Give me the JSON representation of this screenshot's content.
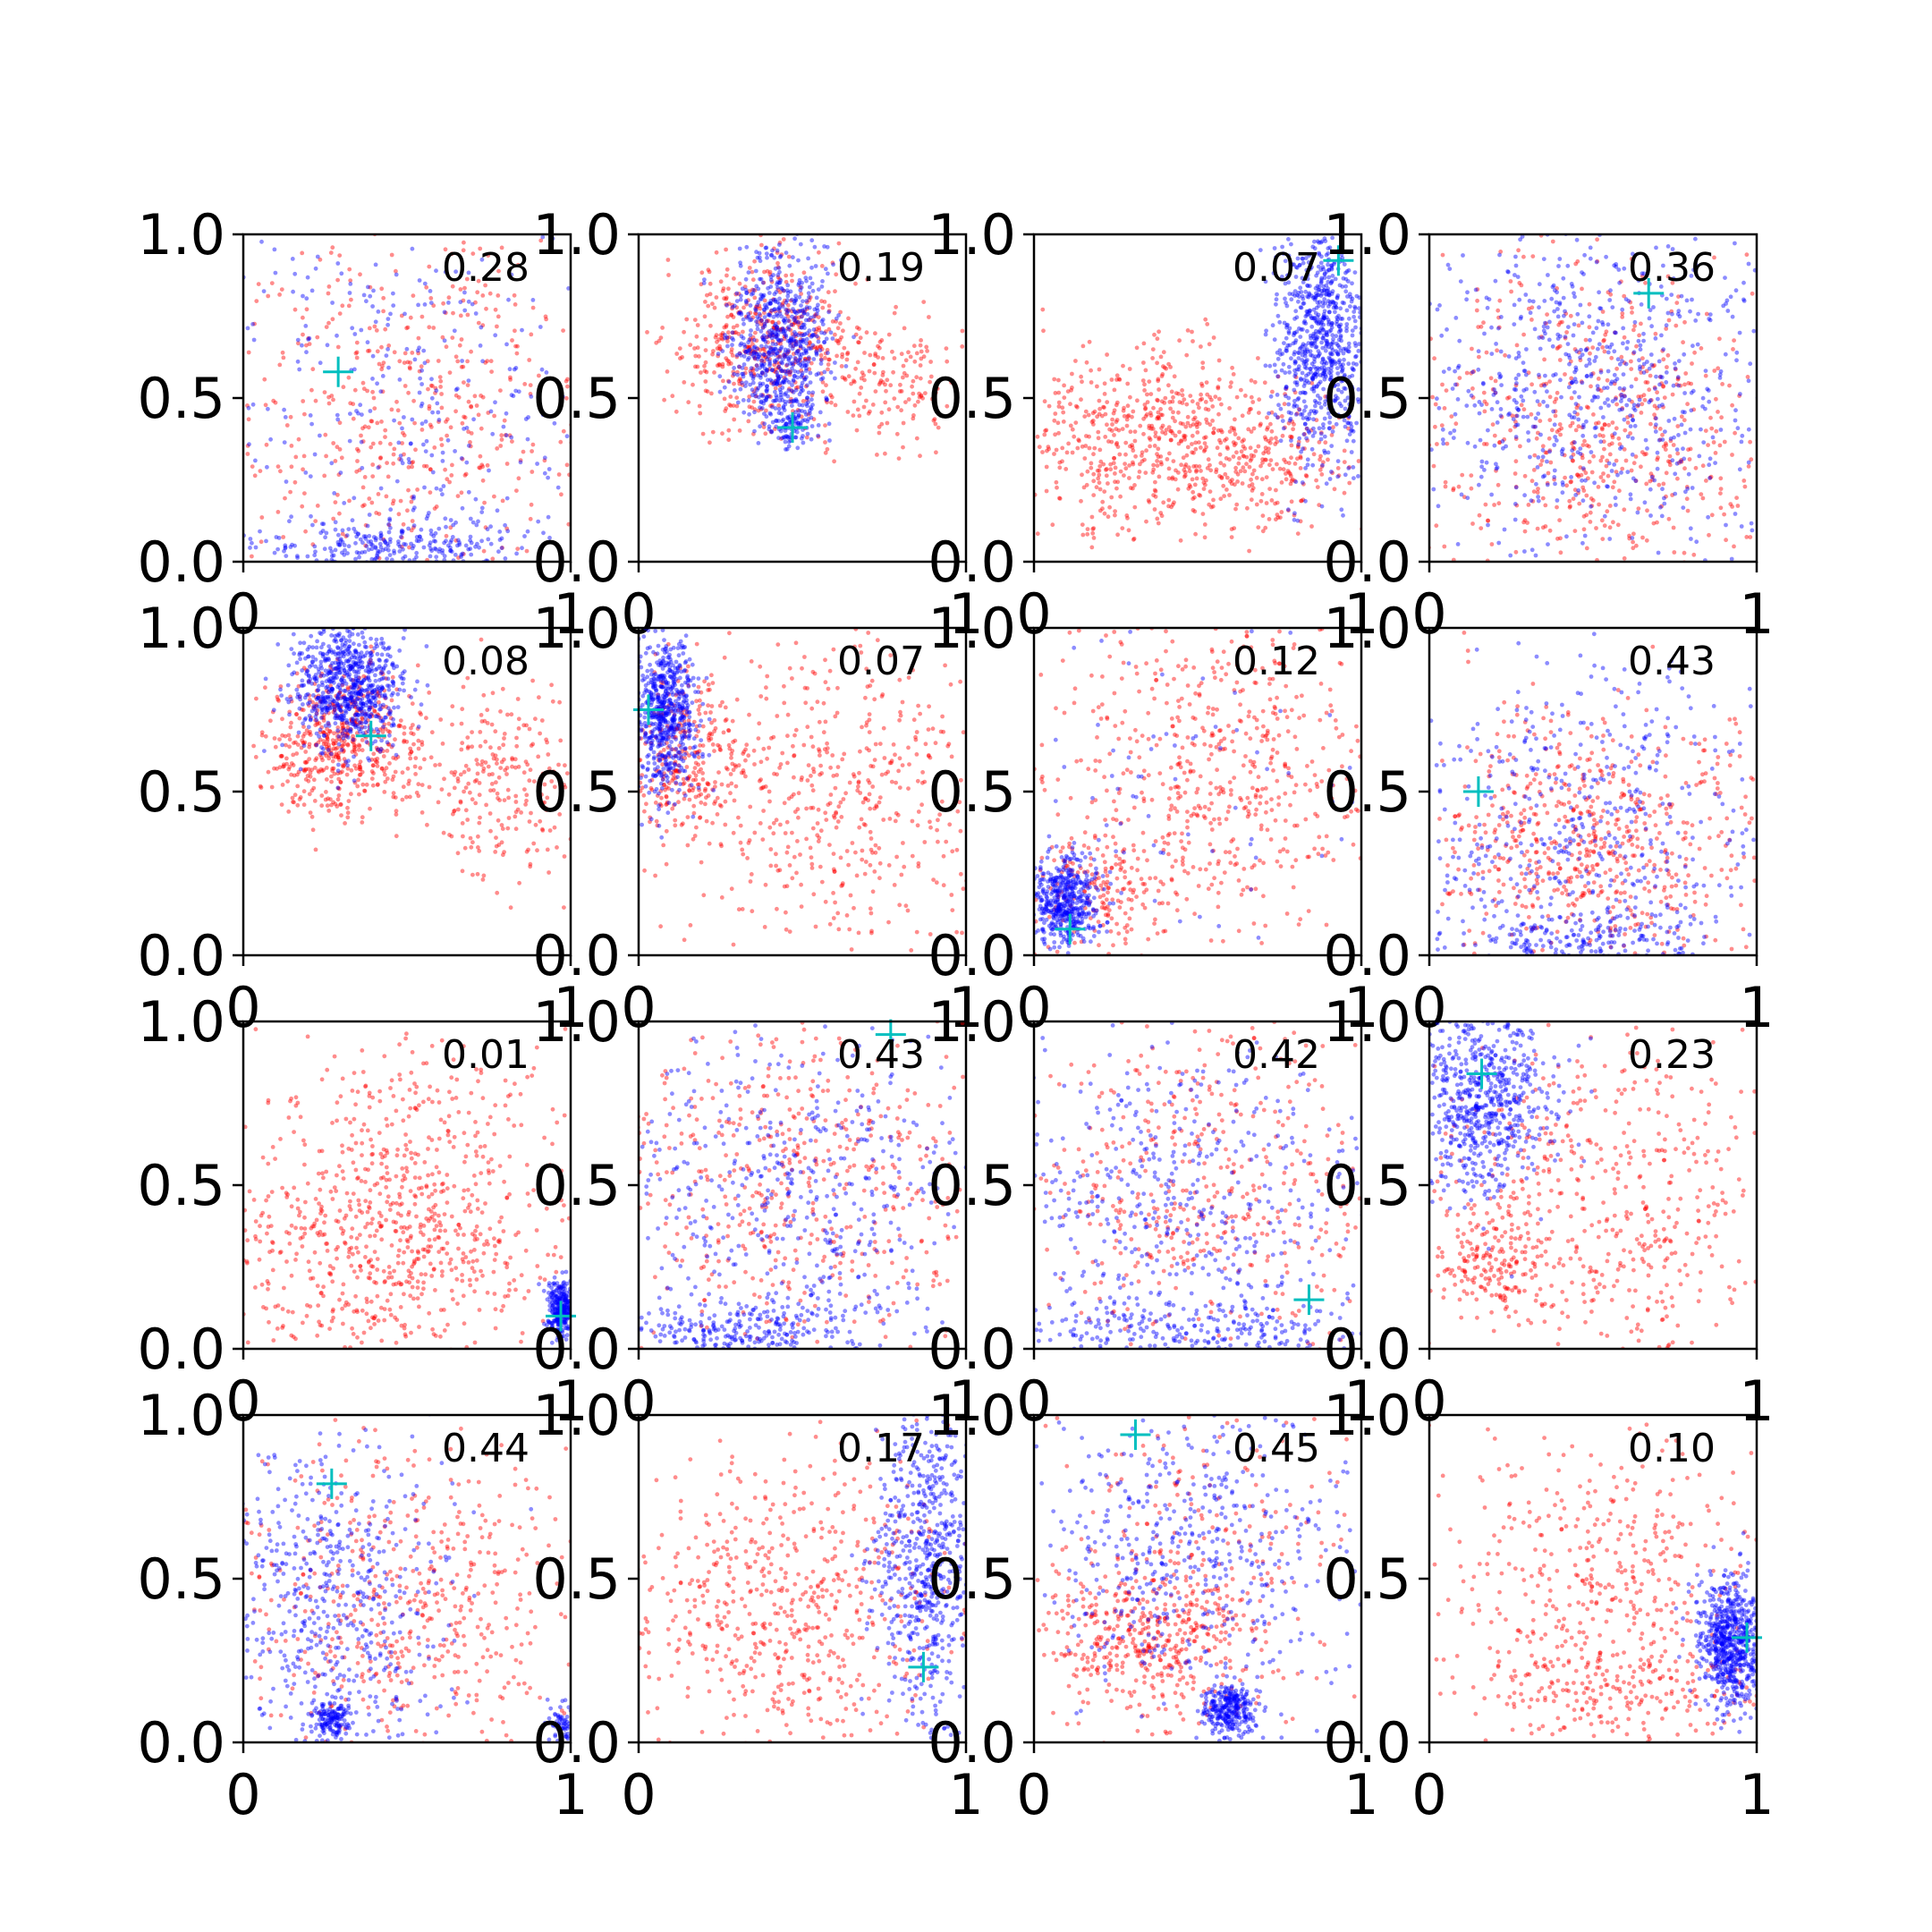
{
  "figure": {
    "layout": "4x4 grid of scatter subplots",
    "background": "#ffffff"
  },
  "colors": {
    "red_series": "#ff0000",
    "blue_series": "#0000ff",
    "marker_plus": "#00bfbf",
    "axis": "#000000"
  },
  "chart_data": [
    {
      "type": "scatter",
      "annotation": "0.28",
      "xlim": [
        0,
        1
      ],
      "ylim": [
        0,
        1
      ],
      "x_ticks": [
        "0",
        "1"
      ],
      "y_ticks": [
        "0.0",
        "0.5",
        "1.0"
      ],
      "marker": [
        0.29,
        0.58
      ],
      "red": [
        {
          "cx": 0.5,
          "cy": 0.5,
          "sx": 0.3,
          "sy": 0.28,
          "n": 520
        }
      ],
      "blue": [
        {
          "cx": 0.5,
          "cy": 0.5,
          "sx": 0.3,
          "sy": 0.3,
          "n": 300
        },
        {
          "cx": 0.45,
          "cy": 0.04,
          "sx": 0.25,
          "sy": 0.05,
          "n": 300
        }
      ]
    },
    {
      "type": "scatter",
      "annotation": "0.19",
      "xlim": [
        0,
        1
      ],
      "ylim": [
        0,
        1
      ],
      "x_ticks": [
        "0",
        "1"
      ],
      "y_ticks": [
        "0.0",
        "0.5",
        "1.0"
      ],
      "marker": [
        0.47,
        0.41
      ],
      "red": [
        {
          "cx": 0.38,
          "cy": 0.66,
          "sx": 0.14,
          "sy": 0.13,
          "n": 520
        },
        {
          "cx": 0.78,
          "cy": 0.55,
          "sx": 0.1,
          "sy": 0.1,
          "n": 140
        }
      ],
      "blue": [
        {
          "cx": 0.43,
          "cy": 0.68,
          "sx": 0.08,
          "sy": 0.13,
          "n": 650
        },
        {
          "cx": 0.46,
          "cy": 0.43,
          "sx": 0.04,
          "sy": 0.04,
          "n": 120
        }
      ]
    },
    {
      "type": "scatter",
      "annotation": "0.07",
      "xlim": [
        0,
        1
      ],
      "ylim": [
        0,
        1
      ],
      "x_ticks": [
        "0",
        "1"
      ],
      "y_ticks": [
        "0.0",
        "0.5",
        "1.0"
      ],
      "marker": [
        0.93,
        0.92
      ],
      "red": [
        {
          "cx": 0.38,
          "cy": 0.38,
          "sx": 0.22,
          "sy": 0.14,
          "n": 650
        },
        {
          "cx": 0.75,
          "cy": 0.3,
          "sx": 0.12,
          "sy": 0.1,
          "n": 150
        }
      ],
      "blue": [
        {
          "cx": 0.88,
          "cy": 0.67,
          "sx": 0.07,
          "sy": 0.18,
          "n": 800
        }
      ]
    },
    {
      "type": "scatter",
      "annotation": "0.36",
      "xlim": [
        0,
        1
      ],
      "ylim": [
        0,
        1
      ],
      "x_ticks": [
        "0",
        "1"
      ],
      "y_ticks": [
        "0.0",
        "0.5",
        "1.0"
      ],
      "marker": [
        0.67,
        0.82
      ],
      "red": [
        {
          "cx": 0.5,
          "cy": 0.4,
          "sx": 0.3,
          "sy": 0.26,
          "n": 650
        }
      ],
      "blue": [
        {
          "cx": 0.5,
          "cy": 0.55,
          "sx": 0.28,
          "sy": 0.27,
          "n": 700
        }
      ]
    },
    {
      "type": "scatter",
      "annotation": "0.08",
      "xlim": [
        0,
        1
      ],
      "ylim": [
        0,
        1
      ],
      "x_ticks": [
        "0",
        "1"
      ],
      "y_ticks": [
        "0.0",
        "0.5",
        "1.0"
      ],
      "marker": [
        0.39,
        0.67
      ],
      "red": [
        {
          "cx": 0.3,
          "cy": 0.65,
          "sx": 0.11,
          "sy": 0.11,
          "n": 550
        },
        {
          "cx": 0.8,
          "cy": 0.5,
          "sx": 0.13,
          "sy": 0.15,
          "n": 250
        }
      ],
      "blue": [
        {
          "cx": 0.32,
          "cy": 0.82,
          "sx": 0.08,
          "sy": 0.1,
          "n": 750
        }
      ]
    },
    {
      "type": "scatter",
      "annotation": "0.07",
      "xlim": [
        0,
        1
      ],
      "ylim": [
        0,
        1
      ],
      "x_ticks": [
        "0",
        "1"
      ],
      "y_ticks": [
        "0.0",
        "0.5",
        "1.0"
      ],
      "marker": [
        0.03,
        0.75
      ],
      "red": [
        {
          "cx": 0.15,
          "cy": 0.6,
          "sx": 0.1,
          "sy": 0.12,
          "n": 300
        },
        {
          "cx": 0.6,
          "cy": 0.5,
          "sx": 0.25,
          "sy": 0.25,
          "n": 500
        }
      ],
      "blue": [
        {
          "cx": 0.08,
          "cy": 0.74,
          "sx": 0.05,
          "sy": 0.12,
          "n": 650
        }
      ]
    },
    {
      "type": "scatter",
      "annotation": "0.12",
      "xlim": [
        0,
        1
      ],
      "ylim": [
        0,
        1
      ],
      "x_ticks": [
        "0",
        "1"
      ],
      "y_ticks": [
        "0.0",
        "0.5",
        "1.0"
      ],
      "marker": [
        0.11,
        0.08
      ],
      "red": [
        {
          "cx": 0.55,
          "cy": 0.55,
          "sx": 0.28,
          "sy": 0.28,
          "n": 650
        },
        {
          "cx": 0.2,
          "cy": 0.2,
          "sx": 0.1,
          "sy": 0.1,
          "n": 150
        }
      ],
      "blue": [
        {
          "cx": 0.09,
          "cy": 0.16,
          "sx": 0.05,
          "sy": 0.07,
          "n": 500
        },
        {
          "cx": 0.5,
          "cy": 0.5,
          "sx": 0.3,
          "sy": 0.3,
          "n": 80
        }
      ]
    },
    {
      "type": "scatter",
      "annotation": "0.43",
      "xlim": [
        0,
        1
      ],
      "ylim": [
        0,
        1
      ],
      "x_ticks": [
        "0",
        "1"
      ],
      "y_ticks": [
        "0.0",
        "0.5",
        "1.0"
      ],
      "marker": [
        0.15,
        0.5
      ],
      "red": [
        {
          "cx": 0.5,
          "cy": 0.35,
          "sx": 0.25,
          "sy": 0.2,
          "n": 650
        }
      ],
      "blue": [
        {
          "cx": 0.45,
          "cy": 0.4,
          "sx": 0.3,
          "sy": 0.28,
          "n": 500
        },
        {
          "cx": 0.45,
          "cy": 0.04,
          "sx": 0.25,
          "sy": 0.05,
          "n": 220
        }
      ]
    },
    {
      "type": "scatter",
      "annotation": "0.01",
      "xlim": [
        0,
        1
      ],
      "ylim": [
        0,
        1
      ],
      "x_ticks": [
        "0",
        "1"
      ],
      "y_ticks": [
        "0.0",
        "0.5",
        "1.0"
      ],
      "marker": [
        0.97,
        0.1
      ],
      "red": [
        {
          "cx": 0.45,
          "cy": 0.3,
          "sx": 0.25,
          "sy": 0.18,
          "n": 650
        },
        {
          "cx": 0.5,
          "cy": 0.65,
          "sx": 0.25,
          "sy": 0.2,
          "n": 200
        }
      ],
      "blue": [
        {
          "cx": 0.97,
          "cy": 0.12,
          "sx": 0.02,
          "sy": 0.04,
          "n": 300
        }
      ]
    },
    {
      "type": "scatter",
      "annotation": "0.43",
      "xlim": [
        0,
        1
      ],
      "ylim": [
        0,
        1
      ],
      "x_ticks": [
        "0",
        "1"
      ],
      "y_ticks": [
        "0.0",
        "0.5",
        "1.0"
      ],
      "marker": [
        0.77,
        0.96
      ],
      "red": [
        {
          "cx": 0.5,
          "cy": 0.5,
          "sx": 0.3,
          "sy": 0.28,
          "n": 550
        }
      ],
      "blue": [
        {
          "cx": 0.5,
          "cy": 0.45,
          "sx": 0.3,
          "sy": 0.28,
          "n": 550
        },
        {
          "cx": 0.3,
          "cy": 0.05,
          "sx": 0.2,
          "sy": 0.05,
          "n": 250
        }
      ]
    },
    {
      "type": "scatter",
      "annotation": "0.42",
      "xlim": [
        0,
        1
      ],
      "ylim": [
        0,
        1
      ],
      "x_ticks": [
        "0",
        "1"
      ],
      "y_ticks": [
        "0.0",
        "0.5",
        "1.0"
      ],
      "marker": [
        0.84,
        0.15
      ],
      "red": [
        {
          "cx": 0.5,
          "cy": 0.5,
          "sx": 0.3,
          "sy": 0.28,
          "n": 500
        }
      ],
      "blue": [
        {
          "cx": 0.45,
          "cy": 0.45,
          "sx": 0.3,
          "sy": 0.28,
          "n": 500
        },
        {
          "cx": 0.45,
          "cy": 0.05,
          "sx": 0.25,
          "sy": 0.05,
          "n": 250
        }
      ]
    },
    {
      "type": "scatter",
      "annotation": "0.23",
      "xlim": [
        0,
        1
      ],
      "ylim": [
        0,
        1
      ],
      "x_ticks": [
        "0",
        "1"
      ],
      "y_ticks": [
        "0.0",
        "0.5",
        "1.0"
      ],
      "marker": [
        0.16,
        0.84
      ],
      "red": [
        {
          "cx": 0.55,
          "cy": 0.45,
          "sx": 0.28,
          "sy": 0.27,
          "n": 550
        },
        {
          "cx": 0.2,
          "cy": 0.25,
          "sx": 0.08,
          "sy": 0.08,
          "n": 150
        }
      ],
      "blue": [
        {
          "cx": 0.17,
          "cy": 0.75,
          "sx": 0.1,
          "sy": 0.15,
          "n": 650
        }
      ]
    },
    {
      "type": "scatter",
      "annotation": "0.44",
      "xlim": [
        0,
        1
      ],
      "ylim": [
        0,
        1
      ],
      "x_ticks": [
        "0",
        "1"
      ],
      "y_ticks": [
        "0.0",
        "0.5",
        "1.0"
      ],
      "marker": [
        0.27,
        0.79
      ],
      "red": [
        {
          "cx": 0.5,
          "cy": 0.4,
          "sx": 0.28,
          "sy": 0.25,
          "n": 550
        }
      ],
      "blue": [
        {
          "cx": 0.25,
          "cy": 0.45,
          "sx": 0.18,
          "sy": 0.25,
          "n": 550
        },
        {
          "cx": 0.27,
          "cy": 0.07,
          "sx": 0.03,
          "sy": 0.03,
          "n": 150
        },
        {
          "cx": 0.97,
          "cy": 0.05,
          "sx": 0.02,
          "sy": 0.03,
          "n": 60
        }
      ]
    },
    {
      "type": "scatter",
      "annotation": "0.17",
      "xlim": [
        0,
        1
      ],
      "ylim": [
        0,
        1
      ],
      "x_ticks": [
        "0",
        "1"
      ],
      "y_ticks": [
        "0.0",
        "0.5",
        "1.0"
      ],
      "marker": [
        0.87,
        0.23
      ],
      "red": [
        {
          "cx": 0.45,
          "cy": 0.4,
          "sx": 0.27,
          "sy": 0.25,
          "n": 650
        }
      ],
      "blue": [
        {
          "cx": 0.88,
          "cy": 0.55,
          "sx": 0.08,
          "sy": 0.25,
          "n": 650
        }
      ]
    },
    {
      "type": "scatter",
      "annotation": "0.45",
      "xlim": [
        0,
        1
      ],
      "ylim": [
        0,
        1
      ],
      "x_ticks": [
        "0",
        "1"
      ],
      "y_ticks": [
        "0.0",
        "0.5",
        "1.0"
      ],
      "marker": [
        0.31,
        0.94
      ],
      "red": [
        {
          "cx": 0.35,
          "cy": 0.3,
          "sx": 0.18,
          "sy": 0.12,
          "n": 450
        },
        {
          "cx": 0.5,
          "cy": 0.6,
          "sx": 0.25,
          "sy": 0.2,
          "n": 200
        }
      ],
      "blue": [
        {
          "cx": 0.5,
          "cy": 0.6,
          "sx": 0.25,
          "sy": 0.25,
          "n": 500
        },
        {
          "cx": 0.6,
          "cy": 0.1,
          "sx": 0.04,
          "sy": 0.04,
          "n": 300
        }
      ]
    },
    {
      "type": "scatter",
      "annotation": "0.10",
      "xlim": [
        0,
        1
      ],
      "ylim": [
        0,
        1
      ],
      "x_ticks": [
        "0",
        "1"
      ],
      "y_ticks": [
        "0.0",
        "0.5",
        "1.0"
      ],
      "marker": [
        0.97,
        0.32
      ],
      "red": [
        {
          "cx": 0.5,
          "cy": 0.45,
          "sx": 0.25,
          "sy": 0.25,
          "n": 500
        },
        {
          "cx": 0.55,
          "cy": 0.15,
          "sx": 0.2,
          "sy": 0.07,
          "n": 150
        }
      ],
      "blue": [
        {
          "cx": 0.92,
          "cy": 0.3,
          "sx": 0.05,
          "sy": 0.1,
          "n": 700
        }
      ]
    }
  ]
}
